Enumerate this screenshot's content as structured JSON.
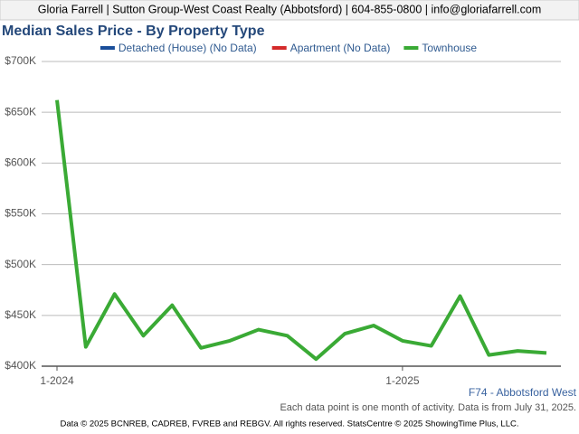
{
  "header": "Gloria Farrell | Sutton Group-West Coast Realty (Abbotsford) | 604-855-0800 | info@gloriafarrell.com",
  "chart_data": {
    "type": "line",
    "title": "Median Sales Price - By Property Type",
    "categories": [
      "1-2024",
      null,
      null,
      null,
      null,
      null,
      null,
      null,
      null,
      null,
      null,
      null,
      "1-2025",
      null,
      null,
      null,
      null,
      null
    ],
    "series": [
      {
        "name": "Detached (House) (No Data)",
        "color": "#1a4e9a",
        "values": [
          null,
          null,
          null,
          null,
          null,
          null,
          null,
          null,
          null,
          null,
          null,
          null,
          null,
          null,
          null,
          null,
          null,
          null
        ]
      },
      {
        "name": "Apartment (No Data)",
        "color": "#d42a2a",
        "values": [
          null,
          null,
          null,
          null,
          null,
          null,
          null,
          null,
          null,
          null,
          null,
          null,
          null,
          null,
          null,
          null,
          null,
          null
        ]
      },
      {
        "name": "Townhouse",
        "color": "#3aaa35",
        "values": [
          662000,
          419000,
          471000,
          430000,
          460000,
          418000,
          425000,
          436000,
          430000,
          407000,
          432000,
          440000,
          425000,
          420000,
          469000,
          411000,
          415000,
          413000
        ]
      }
    ],
    "ylim": [
      400000,
      700000
    ],
    "yticks": [
      {
        "value": 400000,
        "label": "$400K"
      },
      {
        "value": 450000,
        "label": "$450K"
      },
      {
        "value": 500000,
        "label": "$500K"
      },
      {
        "value": 550000,
        "label": "$550K"
      },
      {
        "value": 600000,
        "label": "$600K"
      },
      {
        "value": 650000,
        "label": "$650K"
      },
      {
        "value": 700000,
        "label": "$700K"
      }
    ],
    "grid": true,
    "legend": "top",
    "annotation": "F74 - Abbotsford West",
    "note": "Each data point is one month of activity. Data is from July 31, 2025."
  },
  "footer": "Data © 2025 BCNREB, CADREB, FVREB and REBGV. All rights reserved. StatsCentre © 2025 ShowingTime Plus, LLC."
}
